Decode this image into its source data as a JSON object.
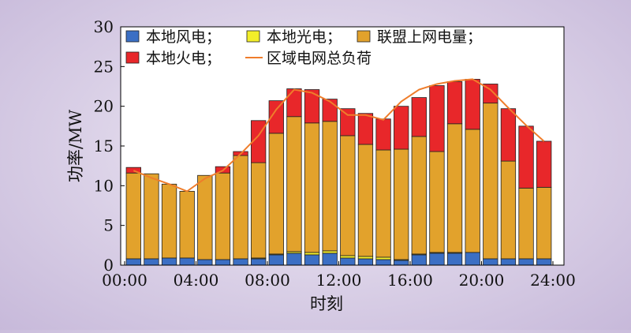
{
  "chart_data": {
    "type": "bar",
    "stacked": true,
    "ylabel": "功率/MW",
    "xlabel": "时刻",
    "ylim": [
      0,
      30
    ],
    "yticks": [
      0,
      5,
      10,
      15,
      20,
      25,
      30
    ],
    "xticks": [
      "00:00",
      "04:00",
      "08:00",
      "12:00",
      "16:00",
      "20:00",
      "24:00"
    ],
    "legend_position": "top-left, inside plot",
    "categories": [
      "1",
      "2",
      "3",
      "4",
      "5",
      "6",
      "7",
      "8",
      "9",
      "10",
      "11",
      "12",
      "13",
      "14",
      "15",
      "16",
      "17",
      "18",
      "19",
      "20",
      "21",
      "22",
      "23",
      "24"
    ],
    "series": [
      {
        "name": "本地风电；",
        "color": "#3b6fc4",
        "values": [
          0.8,
          0.8,
          0.9,
          0.9,
          0.7,
          0.7,
          0.8,
          0.8,
          1.3,
          1.5,
          1.3,
          1.5,
          0.9,
          0.8,
          0.7,
          0.6,
          1.3,
          1.5,
          1.5,
          1.6,
          0.8,
          0.8,
          0.8,
          0.8
        ]
      },
      {
        "name": "本地光电；",
        "color": "#f2ee2a",
        "values": [
          0,
          0,
          0,
          0,
          0,
          0,
          0,
          0.1,
          0.1,
          0.2,
          0.3,
          0.3,
          0.3,
          0.3,
          0.3,
          0.1,
          0.1,
          0.1,
          0.1,
          0,
          0,
          0,
          0,
          0
        ]
      },
      {
        "name": "联盟上网电量；",
        "color": "#e2a22c",
        "values": [
          10.8,
          10.7,
          9.3,
          8.4,
          10.6,
          10.9,
          13.0,
          12.0,
          15.2,
          17.0,
          16.3,
          16.3,
          15.1,
          14.1,
          13.5,
          13.9,
          14.8,
          12.7,
          16.2,
          15.5,
          19.6,
          12.3,
          8.9,
          9.0
        ]
      },
      {
        "name": "本地火电；",
        "color": "#e8272a",
        "values": [
          0.7,
          0,
          0,
          0,
          0,
          0.8,
          0.5,
          5.3,
          4.1,
          3.5,
          4.2,
          2.8,
          3.4,
          3.9,
          3.9,
          5.4,
          4.9,
          8.3,
          5.3,
          6.3,
          2.4,
          6.6,
          7.8,
          5.8
        ]
      }
    ],
    "line": {
      "name": "区域电网总负荷",
      "color": "#ef7d2b",
      "values": [
        11.9,
        11.0,
        10.2,
        9.3,
        10.9,
        11.9,
        14.0,
        16.3,
        19.6,
        22.1,
        21.7,
        20.6,
        18.9,
        18.9,
        18.3,
        20.6,
        22.1,
        22.8,
        23.2,
        23.4,
        22.1,
        19.8,
        17.6,
        15.6
      ]
    }
  }
}
